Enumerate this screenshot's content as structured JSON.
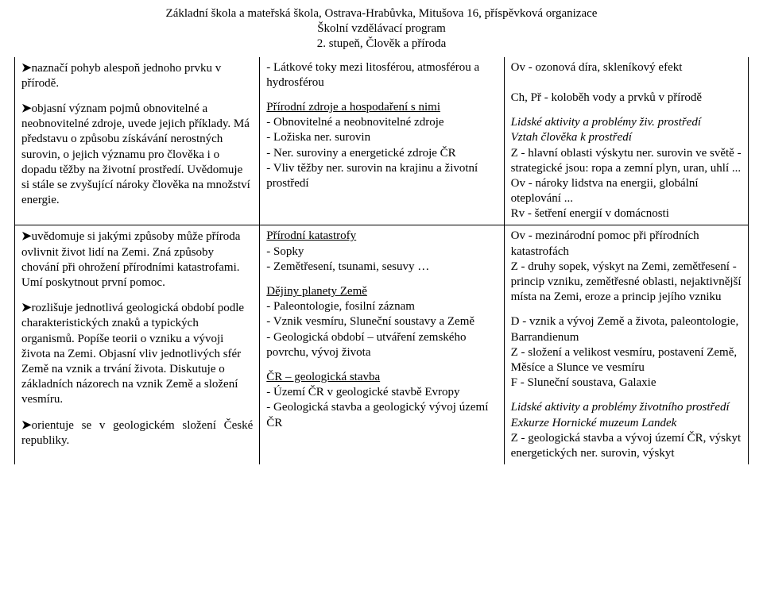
{
  "header": {
    "line1": "Základní škola a mateřská škola, Ostrava-Hrabůvka, Mitušova 16, příspěvková organizace",
    "line2": "Školní vzdělávací program",
    "line3": "2. stupeň, Člověk a příroda"
  },
  "rows": [
    {
      "c1": [
        {
          "arrow": true,
          "text": "naznačí pohyb alespoň jednoho prvku v přírodě."
        },
        {
          "arrow": true,
          "text": "objasní význam pojmů obnovitelné a neobnovitelné zdroje, uvede jejich příklady. Má představu o způsobu získávání nerostných surovin, o jejich významu pro člověka i o dopadu těžby na životní prostředí. Uvědomuje si stále se zvyšující nároky člověka na množství energie."
        }
      ],
      "c2": [
        {
          "text": "- Látkové toky mezi litosférou, atmosférou a hydrosférou"
        },
        {
          "lines": [
            {
              "t": "Přírodní zdroje a hospodaření s nimi",
              "u": true
            },
            {
              "t": "- Obnovitelné a neobnovitelné zdroje"
            },
            {
              "t": "- Ložiska ner. surovin"
            },
            {
              "t": "- Ner. suroviny a energetické zdroje ČR"
            },
            {
              "t": "- Vliv těžby ner. surovin na krajinu a životní prostředí"
            }
          ]
        }
      ],
      "c3": [
        {
          "lines": [
            {
              "t": "Ov - ozonová díra, skleníkový efekt"
            },
            {
              "t": ""
            },
            {
              "t": "Ch, Př - koloběh vody a prvků v přírodě"
            }
          ]
        },
        {
          "lines": [
            {
              "t": "Lidské aktivity a problémy živ. prostředí",
              "em": true
            },
            {
              "t": "Vztah člověka k prostředí",
              "em": true
            },
            {
              "t": "Z - hlavní oblasti výskytu ner. surovin ve světě - strategické jsou: ropa a zemní plyn, uran, uhlí ..."
            },
            {
              "t": "Ov - nároky lidstva na energii, globální oteplování ..."
            },
            {
              "t": "Rv - šetření energií v domácnosti"
            }
          ]
        }
      ]
    },
    {
      "c1": [
        {
          "arrow": true,
          "text": "uvědomuje si jakými způsoby může příroda ovlivnit život lidí na Zemi. Zná způsoby chování při ohrožení přírodními katastrofami. Umí poskytnout první pomoc."
        },
        {
          "arrow": true,
          "text": "rozlišuje jednotlivá geologická období podle charakteristických znaků a typických organismů. Popíše teorii o vzniku a vývoji života na Zemi. Objasní vliv jednotlivých sfér Země na vznik a trvání života. Diskutuje o základních názorech na vznik Země a složení vesmíru."
        },
        {
          "arrow": true,
          "just": true,
          "text": "orientuje se v geologickém složení České republiky."
        }
      ],
      "c2": [
        {
          "lines": [
            {
              "t": "Přírodní katastrofy",
              "u": true
            },
            {
              "t": "- Sopky"
            },
            {
              "t": "- Zemětřesení, tsunami, sesuvy …"
            }
          ]
        },
        {
          "lines": [
            {
              "t": "Dějiny planety Země",
              "u": true
            },
            {
              "t": "- Paleontologie, fosilní záznam"
            },
            {
              "t": "- Vznik vesmíru, Sluneční soustavy a Země"
            },
            {
              "t": "- Geologická období – utváření zemského povrchu, vývoj života"
            }
          ]
        },
        {
          "lines": [
            {
              "t": "ČR – geologická stavba",
              "u": true
            },
            {
              "t": "- Území ČR v geologické stavbě Evropy"
            },
            {
              "t": "- Geologická stavba a geologický vývoj území ČR"
            }
          ]
        }
      ],
      "c3": [
        {
          "lines": [
            {
              "t": "Ov - mezinárodní pomoc při přírodních katastrofách"
            },
            {
              "t": "Z - druhy sopek, výskyt na Zemi, zemětřesení - princip vzniku, zemětřesné oblasti, nejaktivnější místa na Zemi, eroze a princip jejího vzniku"
            }
          ]
        },
        {
          "lines": [
            {
              "t": "D - vznik a vývoj Země a života, paleontologie, Barrandienum"
            },
            {
              "t": "Z - složení a velikost vesmíru, postavení Země, Měsíce a Slunce ve vesmíru"
            },
            {
              "t": "F - Sluneční soustava, Galaxie"
            }
          ]
        },
        {
          "lines": [
            {
              "t": "Lidské aktivity a problémy životního prostředí",
              "em": true
            },
            {
              "t": "Exkurze Hornické muzeum Landek",
              "em": true
            },
            {
              "t": "Z - geologická stavba a vývoj území ČR, výskyt energetických ner. surovin, výskyt"
            }
          ]
        }
      ]
    }
  ],
  "colors": {
    "text": "#000000",
    "bg": "#ffffff",
    "border": "#000000"
  }
}
